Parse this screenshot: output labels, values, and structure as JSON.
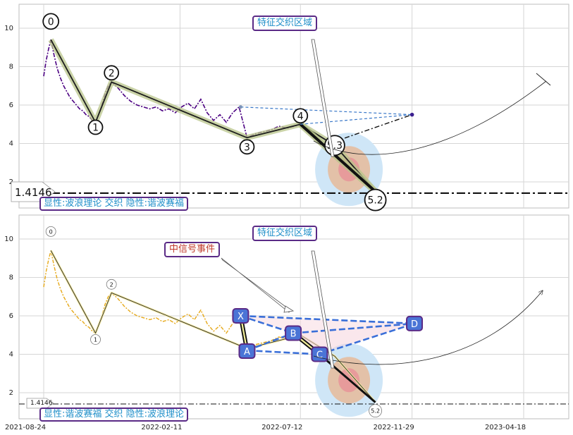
{
  "chart_data": [
    {
      "type": "line",
      "panel": "top",
      "ylim": [
        0.8,
        11.2
      ],
      "yticks": [
        2,
        4,
        6,
        8,
        10
      ],
      "grid": true,
      "price_color": "#4b0082",
      "wave_color": "#2b2b2b",
      "reference_line": {
        "value": 1.4146,
        "label": "1.4146"
      },
      "wave_points": [
        {
          "x": "2021-09-02",
          "y": 9.4,
          "label": "0"
        },
        {
          "x": "2021-10-28",
          "y": 5.1,
          "label": "1"
        },
        {
          "x": "2021-11-17",
          "y": 7.2,
          "label": "2"
        },
        {
          "x": "2022-05-06",
          "y": 4.3,
          "label": "3"
        },
        {
          "x": "2022-07-12",
          "y": 5.0,
          "label": "4"
        },
        {
          "x": "2022-08-24",
          "y": 3.9,
          "label": "5.3"
        },
        {
          "x": "2022-10-14",
          "y": 1.5,
          "label": "5.2"
        }
      ],
      "price_series": [
        [
          "2021-08-24",
          7.5
        ],
        [
          "2021-08-27",
          8.3
        ],
        [
          "2021-08-30",
          8.9
        ],
        [
          "2021-09-02",
          9.4
        ],
        [
          "2021-09-06",
          8.6
        ],
        [
          "2021-09-10",
          7.9
        ],
        [
          "2021-09-14",
          7.4
        ],
        [
          "2021-09-18",
          7.0
        ],
        [
          "2021-09-22",
          6.7
        ],
        [
          "2021-09-26",
          6.4
        ],
        [
          "2021-09-30",
          6.2
        ],
        [
          "2021-10-04",
          6.0
        ],
        [
          "2021-10-08",
          5.8
        ],
        [
          "2021-10-12",
          5.7
        ],
        [
          "2021-10-16",
          5.5
        ],
        [
          "2021-10-20",
          5.4
        ],
        [
          "2021-10-24",
          5.2
        ],
        [
          "2021-10-28",
          5.1
        ],
        [
          "2021-11-01",
          5.5
        ],
        [
          "2021-11-05",
          6.0
        ],
        [
          "2021-11-09",
          6.6
        ],
        [
          "2021-11-13",
          7.0
        ],
        [
          "2021-11-17",
          7.2
        ],
        [
          "2021-11-25",
          6.9
        ],
        [
          "2021-12-03",
          6.5
        ],
        [
          "2021-12-11",
          6.2
        ],
        [
          "2021-12-19",
          6.0
        ],
        [
          "2021-12-27",
          5.9
        ],
        [
          "2022-01-04",
          5.8
        ],
        [
          "2022-01-12",
          5.9
        ],
        [
          "2022-01-20",
          5.7
        ],
        [
          "2022-01-28",
          5.8
        ],
        [
          "2022-02-05",
          5.6
        ],
        [
          "2022-02-13",
          5.9
        ],
        [
          "2022-02-21",
          6.1
        ],
        [
          "2022-03-01",
          5.8
        ],
        [
          "2022-03-09",
          6.3
        ],
        [
          "2022-03-17",
          5.6
        ],
        [
          "2022-03-25",
          5.2
        ],
        [
          "2022-04-02",
          5.5
        ],
        [
          "2022-04-10",
          5.1
        ],
        [
          "2022-04-18",
          5.6
        ],
        [
          "2022-04-26",
          5.9
        ],
        [
          "2022-05-06",
          4.3
        ],
        [
          "2022-05-16",
          4.5
        ],
        [
          "2022-05-26",
          4.6
        ],
        [
          "2022-06-05",
          4.7
        ],
        [
          "2022-06-15",
          4.9
        ],
        [
          "2022-06-25",
          4.8
        ],
        [
          "2022-07-05",
          4.9
        ],
        [
          "2022-07-12",
          5.0
        ]
      ],
      "projection_lines": [
        {
          "from": [
            "2022-04-28",
            5.9
          ],
          "to": [
            "2022-11-29",
            5.5
          ],
          "style": "dashed",
          "color": "#3a78c8"
        },
        {
          "from": [
            "2022-07-12",
            5.0
          ],
          "to": [
            "2022-11-29",
            5.5
          ],
          "style": "dashed",
          "color": "#3a78c8"
        },
        {
          "from": [
            "2022-08-24",
            4.1
          ],
          "to": [
            "2022-11-29",
            5.5
          ],
          "style": "dashdot",
          "color": "#111111"
        }
      ],
      "annotations": [
        {
          "text": "特征交织区域",
          "color": "#1f8fc9",
          "border": "#5a2a86"
        },
        {
          "text": "显性:波浪理论 交织 隐性:谐波赛福",
          "color": "#1f8fc9",
          "border": "#5a2a86"
        }
      ]
    },
    {
      "type": "line",
      "panel": "bottom",
      "ylim": [
        0.8,
        11.2
      ],
      "yticks": [
        2,
        4,
        6,
        8,
        10
      ],
      "xticks": [
        "2021-08-24",
        "2022-02-11",
        "2022-07-12",
        "2022-11-29",
        "2023-04-18"
      ],
      "grid": true,
      "price_color": "#e6a817",
      "harmonic_color": "#3a6fd8",
      "reference_line": {
        "value": 1.4146,
        "label": "1.4146"
      },
      "wave_points": [
        {
          "x": "2021-09-02",
          "y": 9.4,
          "label": "0"
        },
        {
          "x": "2021-10-28",
          "y": 5.1,
          "label": "1"
        },
        {
          "x": "2021-11-17",
          "y": 7.2,
          "label": "2"
        },
        {
          "x": "2022-05-06",
          "y": 4.3,
          "label": ""
        },
        {
          "x": "2022-07-12",
          "y": 5.0,
          "label": ""
        },
        {
          "x": "2022-08-24",
          "y": 3.9,
          "label": ""
        },
        {
          "x": "2022-10-14",
          "y": 1.5,
          "label": "5.2"
        }
      ],
      "harmonic_points": [
        {
          "x": "2022-04-28",
          "y": 6.0,
          "label": "X"
        },
        {
          "x": "2022-05-06",
          "y": 4.2,
          "label": "A"
        },
        {
          "x": "2022-07-03",
          "y": 5.1,
          "label": "B"
        },
        {
          "x": "2022-08-05",
          "y": 4.0,
          "label": "C"
        },
        {
          "x": "2022-12-02",
          "y": 5.6,
          "label": "D"
        }
      ],
      "annotations": [
        {
          "text": "特征交织区域",
          "color": "#1f8fc9",
          "border": "#5a2a86"
        },
        {
          "text": "中信号事件",
          "color": "#c0392b",
          "border": "#5a2a86"
        },
        {
          "text": "显性:谐波赛福 交织 隐性:波浪理论",
          "color": "#1f8fc9",
          "border": "#5a2a86"
        }
      ]
    }
  ]
}
